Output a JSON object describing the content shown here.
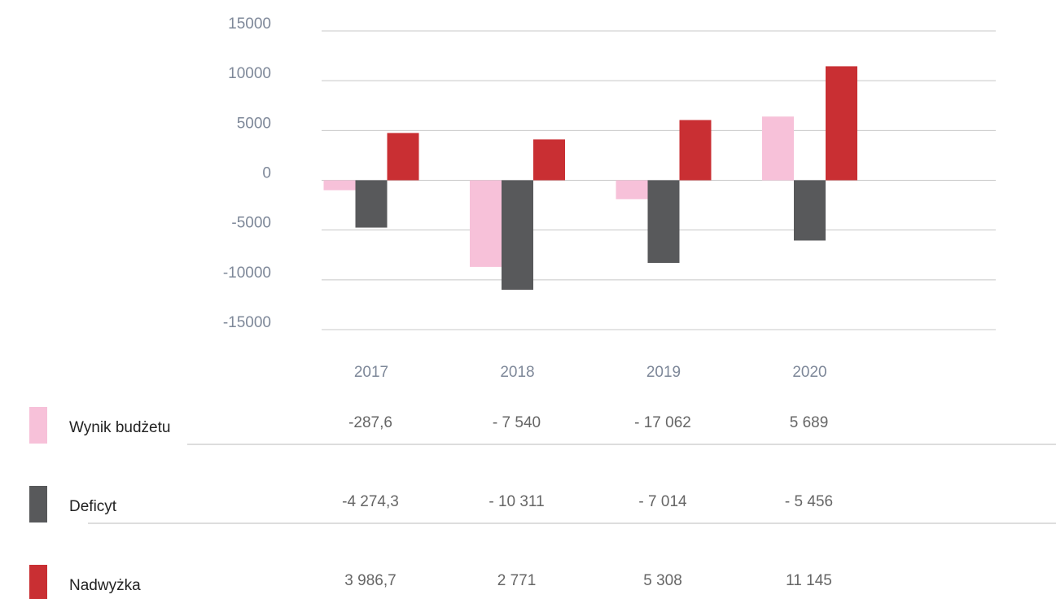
{
  "chart_data": {
    "type": "bar",
    "categories": [
      "2017",
      "2018",
      "2019",
      "2020"
    ],
    "series": [
      {
        "name": "Wynik budżetu",
        "color": "#f7c1d9",
        "values": [
          -1000,
          -8700,
          -1900,
          6400
        ]
      },
      {
        "name": "Deficyt",
        "color": "#58595b",
        "values": [
          -4750,
          -11000,
          -8300,
          -6050
        ]
      },
      {
        "name": "Nadwyżka",
        "color": "#c92f33",
        "values": [
          4750,
          4100,
          6050,
          11450
        ]
      }
    ],
    "ylim": [
      -15000,
      15000
    ],
    "yticks": [
      -15000,
      -10000,
      -5000,
      0,
      5000,
      10000,
      15000
    ],
    "grid": true
  },
  "table": {
    "rows": [
      [
        "-287,6",
        "- 7 540",
        "- 17 062",
        "5 689"
      ],
      [
        "-4 274,3",
        "- 10 311",
        "- 7 014",
        "- 5 456"
      ],
      [
        "3 986,7",
        "2 771",
        "5 308",
        "11 145"
      ]
    ]
  }
}
